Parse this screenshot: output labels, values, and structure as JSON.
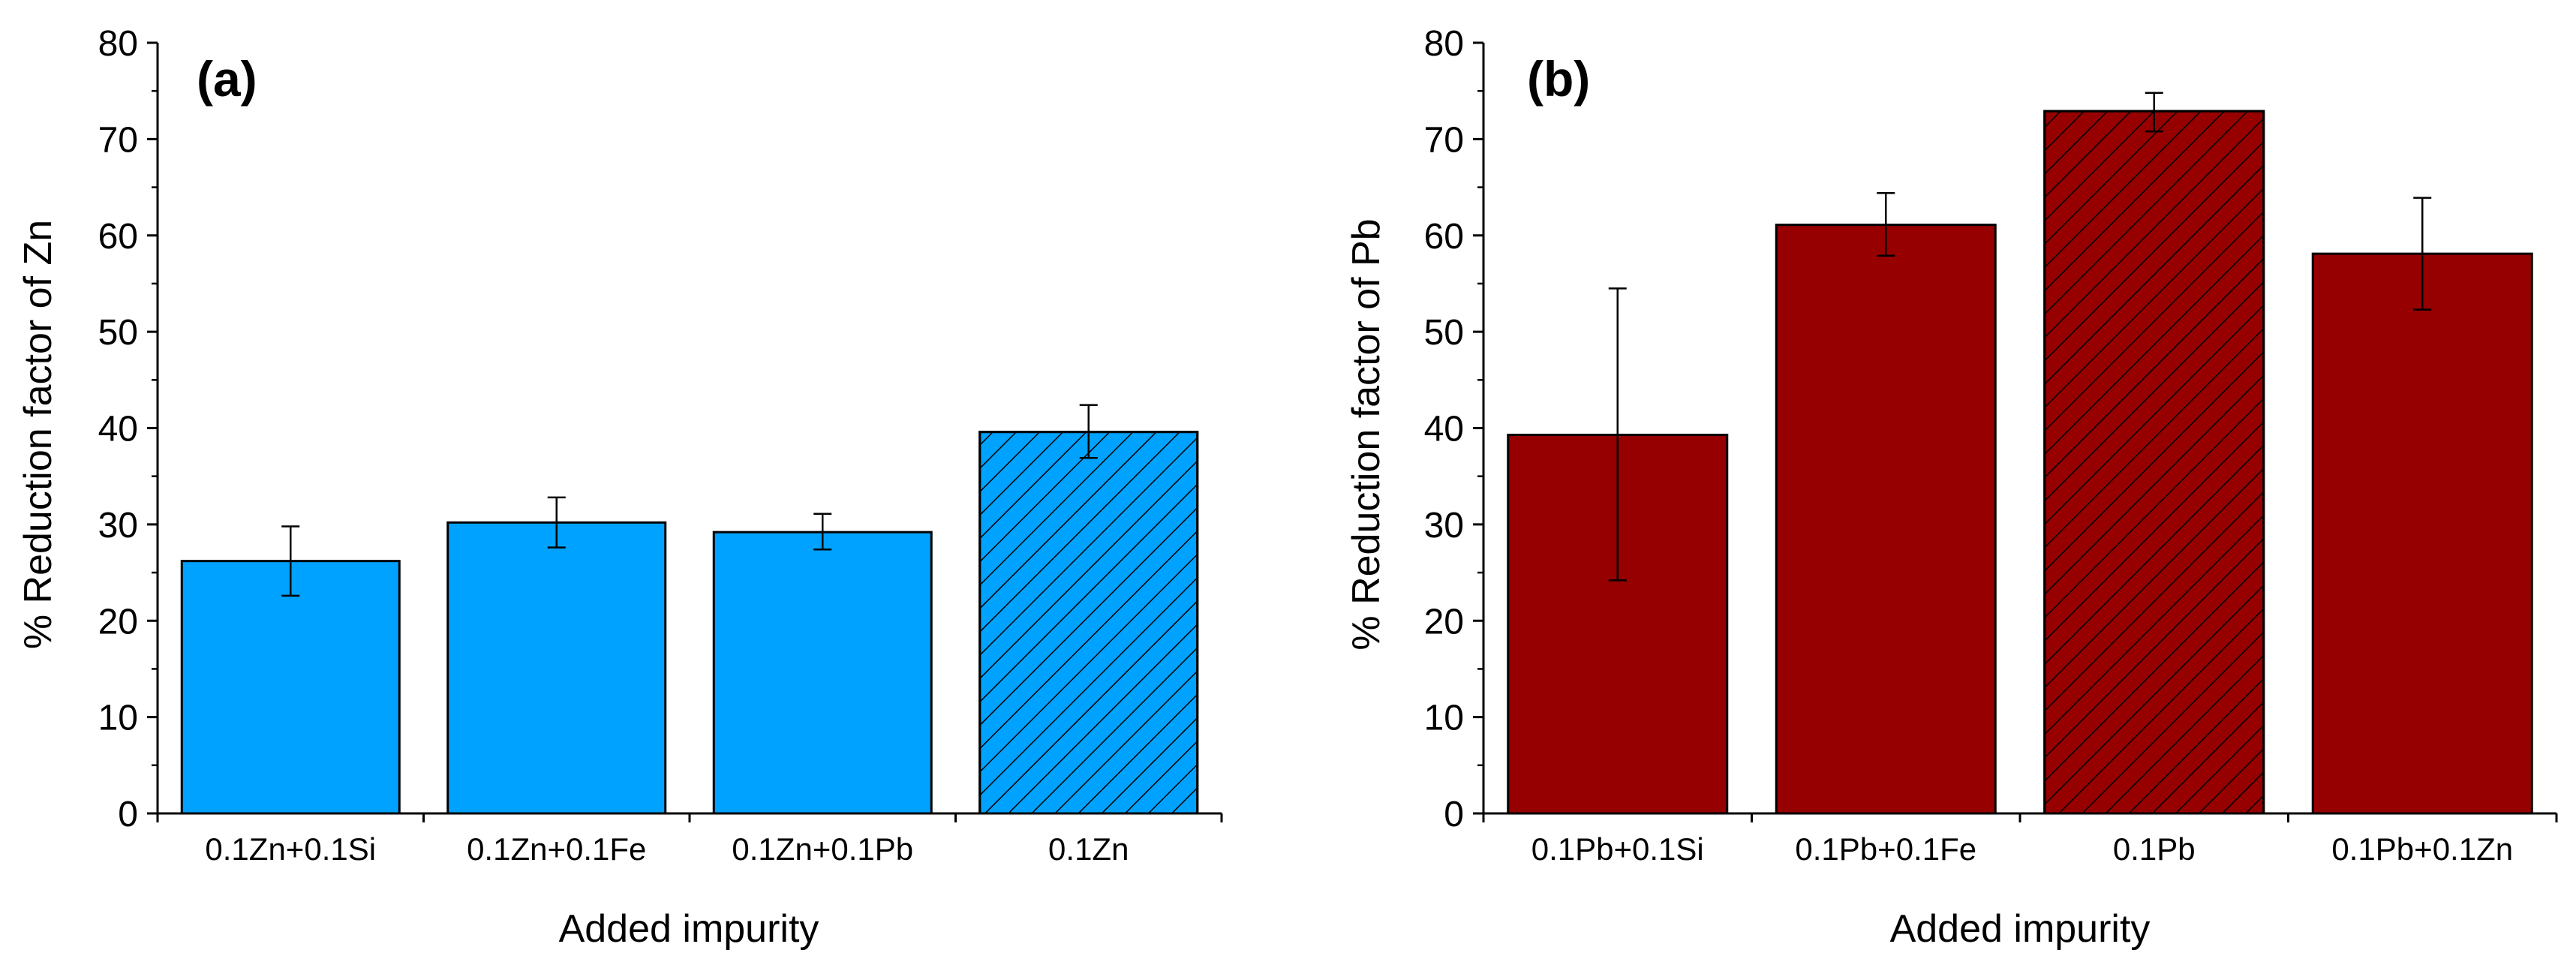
{
  "chart_data": [
    {
      "type": "bar",
      "panel_label": "(a)",
      "title": "",
      "xlabel": "Added impurity",
      "ylabel": "% Reduction factor of Zn",
      "ylim": [
        0,
        80
      ],
      "yticks": [
        0,
        10,
        20,
        30,
        40,
        50,
        60,
        70,
        80
      ],
      "categories": [
        "0.1Zn+0.1Si",
        "0.1Zn+0.1Fe",
        "0.1Zn+0.1Pb",
        "0.1Zn"
      ],
      "values": [
        26.2,
        30.2,
        29.2,
        39.6
      ],
      "error_low": [
        22.6,
        27.6,
        27.4,
        36.9
      ],
      "error_high": [
        29.8,
        32.8,
        31.1,
        42.4
      ],
      "hatched": [
        false,
        false,
        false,
        true
      ],
      "color": "#00a2ff",
      "grid": false
    },
    {
      "type": "bar",
      "panel_label": "(b)",
      "title": "",
      "xlabel": "Added impurity",
      "ylabel": "% Reduction factor of Pb",
      "ylim": [
        0,
        80
      ],
      "yticks": [
        0,
        10,
        20,
        30,
        40,
        50,
        60,
        70,
        80
      ],
      "categories": [
        "0.1Pb+0.1Si",
        "0.1Pb+0.1Fe",
        "0.1Pb",
        "0.1Pb+0.1Zn"
      ],
      "values": [
        39.3,
        61.1,
        72.9,
        58.1
      ],
      "error_low": [
        24.2,
        57.9,
        70.8,
        52.3
      ],
      "error_high": [
        54.5,
        64.4,
        74.8,
        63.9
      ],
      "hatched": [
        false,
        false,
        true,
        false
      ],
      "color": "#960000",
      "grid": false
    }
  ]
}
